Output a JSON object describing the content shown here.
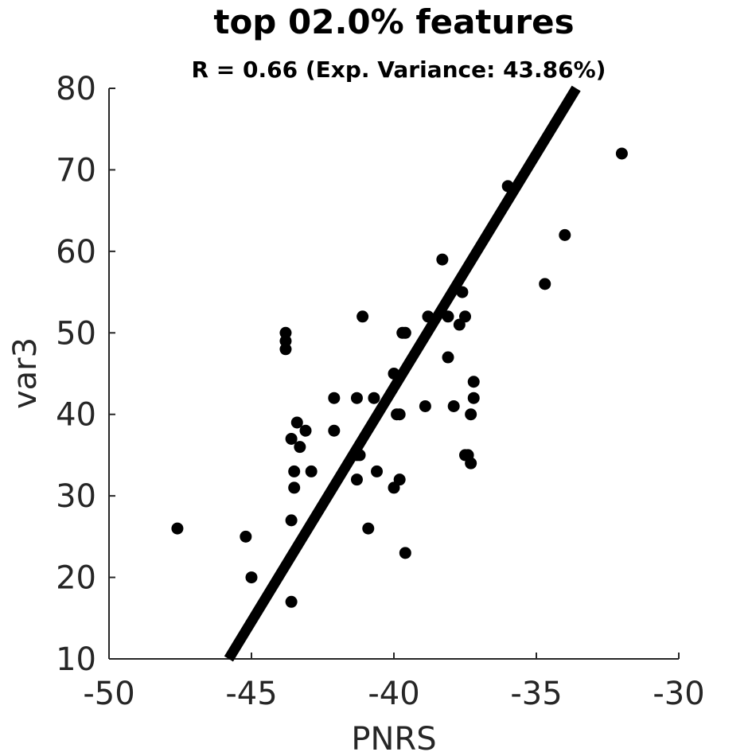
{
  "chart_data": {
    "type": "scatter",
    "title": "top 02.0% features",
    "subtitle": "R = 0.66 (Exp. Variance: 43.86%)",
    "xlabel": "PNRS",
    "ylabel": "var3",
    "xlim": [
      -50,
      -30
    ],
    "ylim": [
      10,
      80
    ],
    "xticks": [
      -50,
      -45,
      -40,
      -35,
      -30
    ],
    "yticks": [
      10,
      20,
      30,
      40,
      50,
      60,
      70,
      80
    ],
    "grid": false,
    "colors": {
      "points": "#000000",
      "fit_line": "#000000",
      "axes": "#262626"
    },
    "points": [
      {
        "x": -47.6,
        "y": 26
      },
      {
        "x": -45.2,
        "y": 25
      },
      {
        "x": -45.0,
        "y": 20
      },
      {
        "x": -43.8,
        "y": 50
      },
      {
        "x": -43.8,
        "y": 49
      },
      {
        "x": -43.8,
        "y": 48
      },
      {
        "x": -43.6,
        "y": 37
      },
      {
        "x": -43.6,
        "y": 27
      },
      {
        "x": -43.6,
        "y": 17
      },
      {
        "x": -43.5,
        "y": 33
      },
      {
        "x": -43.5,
        "y": 31
      },
      {
        "x": -43.4,
        "y": 39
      },
      {
        "x": -43.3,
        "y": 36
      },
      {
        "x": -43.1,
        "y": 38
      },
      {
        "x": -42.9,
        "y": 33
      },
      {
        "x": -42.1,
        "y": 42
      },
      {
        "x": -42.1,
        "y": 38
      },
      {
        "x": -41.3,
        "y": 42
      },
      {
        "x": -41.3,
        "y": 35
      },
      {
        "x": -41.2,
        "y": 35
      },
      {
        "x": -41.3,
        "y": 32
      },
      {
        "x": -41.1,
        "y": 52
      },
      {
        "x": -40.9,
        "y": 26
      },
      {
        "x": -40.7,
        "y": 42
      },
      {
        "x": -40.6,
        "y": 33
      },
      {
        "x": -40.0,
        "y": 45
      },
      {
        "x": -40.0,
        "y": 31
      },
      {
        "x": -39.9,
        "y": 40
      },
      {
        "x": -39.8,
        "y": 40
      },
      {
        "x": -39.8,
        "y": 32
      },
      {
        "x": -39.7,
        "y": 50
      },
      {
        "x": -39.6,
        "y": 50
      },
      {
        "x": -39.6,
        "y": 23
      },
      {
        "x": -38.9,
        "y": 41
      },
      {
        "x": -38.8,
        "y": 52
      },
      {
        "x": -38.3,
        "y": 59
      },
      {
        "x": -38.1,
        "y": 52
      },
      {
        "x": -38.1,
        "y": 47
      },
      {
        "x": -37.9,
        "y": 41
      },
      {
        "x": -37.7,
        "y": 51
      },
      {
        "x": -37.6,
        "y": 55
      },
      {
        "x": -37.5,
        "y": 52
      },
      {
        "x": -37.5,
        "y": 35
      },
      {
        "x": -37.4,
        "y": 35
      },
      {
        "x": -37.3,
        "y": 40
      },
      {
        "x": -37.3,
        "y": 34
      },
      {
        "x": -37.2,
        "y": 44
      },
      {
        "x": -37.2,
        "y": 42
      },
      {
        "x": -36.0,
        "y": 68
      },
      {
        "x": -34.7,
        "y": 56
      },
      {
        "x": -34.0,
        "y": 62
      },
      {
        "x": -32.0,
        "y": 72
      }
    ],
    "fit_line": {
      "x": [
        -45.8,
        -33.6
      ],
      "y": [
        10,
        80
      ]
    }
  }
}
